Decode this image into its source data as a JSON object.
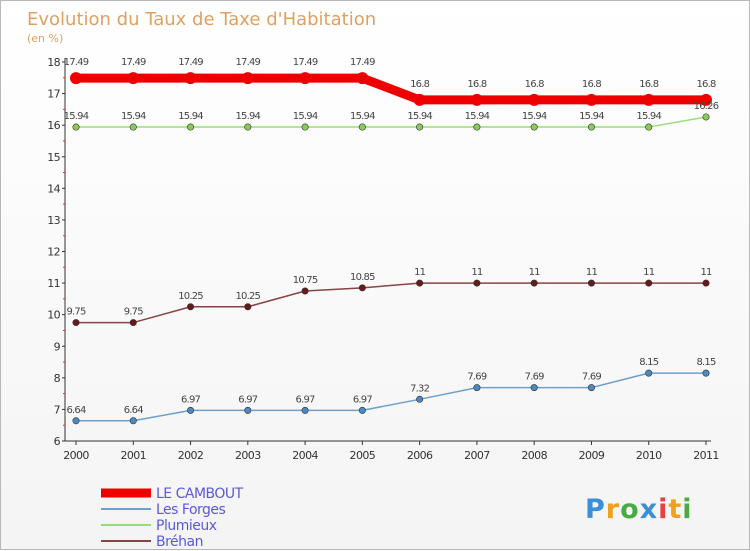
{
  "chart_data": {
    "type": "line",
    "title": "Evolution du Taux de Taxe d'Habitation",
    "subtitle": "(en %)",
    "x": [
      "2000",
      "2001",
      "2002",
      "2003",
      "2004",
      "2005",
      "2006",
      "2007",
      "2008",
      "2009",
      "2010",
      "2011"
    ],
    "ylim": [
      6,
      18
    ],
    "yticks": [
      "6",
      "7",
      "8",
      "9",
      "10",
      "11",
      "12",
      "13",
      "14",
      "15",
      "16",
      "17",
      "18"
    ],
    "grid": false,
    "legend_position": "bottom-left",
    "series": [
      {
        "name": "LE CAMBOUT",
        "color": "#ee0000",
        "values": [
          17.49,
          17.49,
          17.49,
          17.49,
          17.49,
          17.49,
          16.8,
          16.8,
          16.8,
          16.8,
          16.8,
          16.8
        ],
        "labels": [
          "17.49",
          "17.49",
          "17.49",
          "17.49",
          "17.49",
          "17.49",
          "16.8",
          "16.8",
          "16.8",
          "16.8",
          "16.8",
          "16.8"
        ]
      },
      {
        "name": "Les Forges",
        "color": "#6fa0cc",
        "marker_color": "#4a8ac4",
        "values": [
          6.64,
          6.64,
          6.97,
          6.97,
          6.97,
          6.97,
          7.32,
          7.69,
          7.69,
          7.69,
          8.15,
          8.15
        ],
        "labels": [
          "6.64",
          "6.64",
          "6.97",
          "6.97",
          "6.97",
          "6.97",
          "7.32",
          "7.69",
          "7.69",
          "7.69",
          "8.15",
          "8.15"
        ]
      },
      {
        "name": "Plumieux",
        "color": "#99dd77",
        "marker_color": "#88cc55",
        "values": [
          15.94,
          15.94,
          15.94,
          15.94,
          15.94,
          15.94,
          15.94,
          15.94,
          15.94,
          15.94,
          15.94,
          16.26
        ],
        "labels": [
          "15.94",
          "15.94",
          "15.94",
          "15.94",
          "15.94",
          "15.94",
          "15.94",
          "15.94",
          "15.94",
          "15.94",
          "15.94",
          "16.26"
        ]
      },
      {
        "name": "Bréhan",
        "color": "#884444",
        "marker_color": "#661a1a",
        "values": [
          9.75,
          9.75,
          10.25,
          10.25,
          10.75,
          10.85,
          11,
          11,
          11,
          11,
          11,
          11
        ],
        "labels": [
          "9.75",
          "9.75",
          "10.25",
          "10.25",
          "10.75",
          "10.85",
          "11",
          "11",
          "11",
          "11",
          "11",
          "11"
        ]
      }
    ]
  },
  "logo": {
    "letters": [
      {
        "ch": "P",
        "color": "#3a8fd8"
      },
      {
        "ch": "r",
        "color": "#f0a020"
      },
      {
        "ch": "o",
        "color": "#4aaa44"
      },
      {
        "ch": "x",
        "color": "#3a8fd8"
      },
      {
        "ch": "i",
        "color": "#e84040"
      },
      {
        "ch": "t",
        "color": "#f0a020"
      },
      {
        "ch": "i",
        "color": "#4aaa44"
      }
    ]
  }
}
